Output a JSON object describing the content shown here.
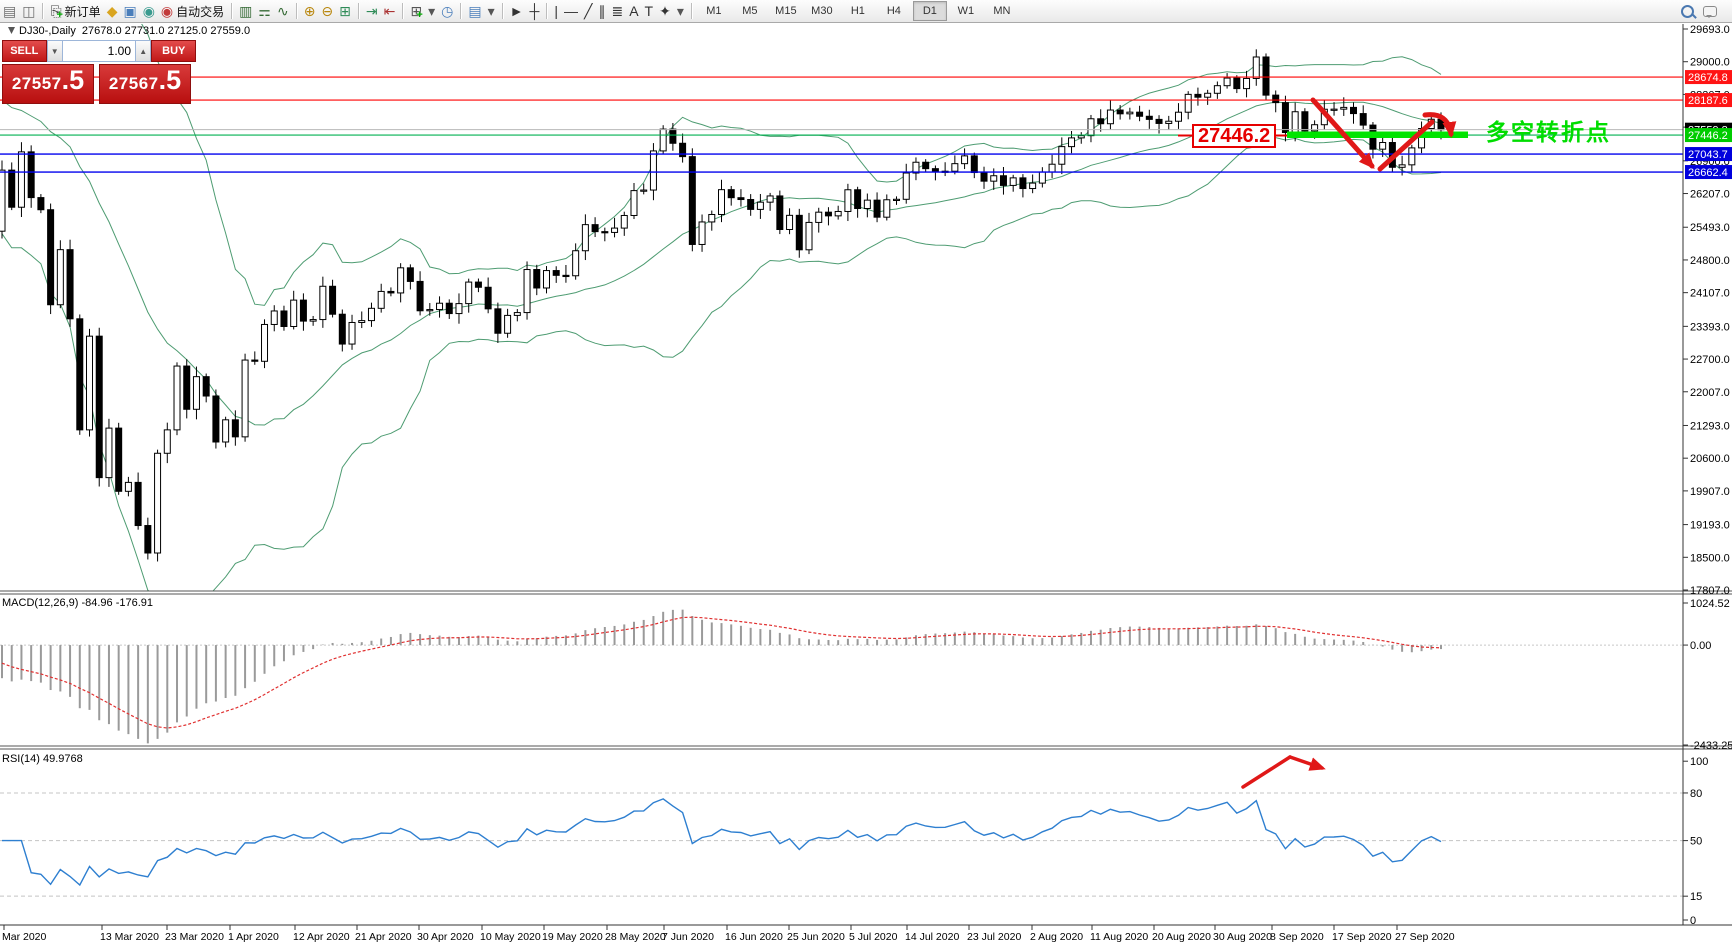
{
  "toolbar": {
    "left_icons": [
      {
        "name": "profiles-icon",
        "glyph": "▤",
        "color": "#6f6f6f"
      },
      {
        "name": "chart-preview-icon",
        "glyph": "◫",
        "color": "#6f6f6f"
      },
      {
        "name": "separator"
      },
      {
        "name": "new-order-icon",
        "glyph": "⎘",
        "color": "#444",
        "label": "新订单",
        "plus": true
      },
      {
        "name": "gold-icon",
        "glyph": "◆",
        "color": "#d9a520"
      },
      {
        "name": "terminal-icon",
        "glyph": "▣",
        "color": "#4a7ebb"
      },
      {
        "name": "signals-icon",
        "glyph": "◉",
        "color": "#3a9b8f"
      },
      {
        "name": "auto-trading-icon",
        "glyph": "◉",
        "color": "#c23b3b",
        "label": "自动交易"
      },
      {
        "name": "separator"
      },
      {
        "name": "bar-chart-icon",
        "glyph": "▥",
        "color": "#356a35"
      },
      {
        "name": "candlestick-chart-icon",
        "glyph": "⚎",
        "color": "#356a35"
      },
      {
        "name": "line-chart-icon",
        "glyph": "∿",
        "color": "#356a35"
      },
      {
        "name": "separator"
      },
      {
        "name": "zoom-in-icon",
        "glyph": "⊕",
        "color": "#b8860b"
      },
      {
        "name": "zoom-out-icon",
        "glyph": "⊖",
        "color": "#b8860b"
      },
      {
        "name": "tile-windows-icon",
        "glyph": "⊞",
        "color": "#2e8b57"
      },
      {
        "name": "separator"
      },
      {
        "name": "auto-scroll-icon",
        "glyph": "⇥",
        "color": "#2e8b57"
      },
      {
        "name": "chart-shift-icon",
        "glyph": "⇤",
        "color": "#a33"
      },
      {
        "name": "separator"
      },
      {
        "name": "add-indicator-icon",
        "glyph": "⊞",
        "color": "#555",
        "plus": true
      },
      {
        "name": "dropdown-caret-icon",
        "glyph": "▾",
        "color": "#555"
      },
      {
        "name": "clock-icon",
        "glyph": "◷",
        "color": "#4a7ebb"
      },
      {
        "name": "separator"
      },
      {
        "name": "indicator-list-icon",
        "glyph": "▤",
        "color": "#4a7ebb"
      },
      {
        "name": "dropdown-caret-icon-2",
        "glyph": "▾",
        "color": "#555"
      },
      {
        "name": "separator"
      },
      {
        "name": "cursor-icon",
        "glyph": "►",
        "color": "#333"
      },
      {
        "name": "crosshair-icon",
        "glyph": "┼",
        "color": "#333"
      },
      {
        "name": "separator"
      },
      {
        "name": "vertical-line-icon",
        "glyph": "|",
        "color": "#333"
      },
      {
        "name": "horizontal-line-icon",
        "glyph": "—",
        "color": "#333"
      },
      {
        "name": "trendline-icon",
        "glyph": "╱",
        "color": "#333"
      },
      {
        "name": "channel-icon",
        "glyph": "∥",
        "color": "#333"
      },
      {
        "name": "fibonacci-icon",
        "glyph": "≣",
        "color": "#333"
      },
      {
        "name": "text-icon",
        "glyph": "A",
        "color": "#333"
      },
      {
        "name": "text-label-icon",
        "glyph": "T",
        "color": "#333"
      },
      {
        "name": "arrows-icon",
        "glyph": "✦",
        "color": "#333"
      },
      {
        "name": "dropdown-caret-icon-3",
        "glyph": "▾",
        "color": "#555"
      }
    ],
    "timeframes": [
      "M1",
      "M5",
      "M15",
      "M30",
      "H1",
      "H4",
      "D1",
      "W1",
      "MN"
    ],
    "active_timeframe": "D1"
  },
  "chart": {
    "symbol_period": "DJ30-,Daily",
    "ohlc": "27678.0 27731.0 27125.0 27559.0"
  },
  "trade": {
    "sell_label": "SELL",
    "buy_label": "BUY",
    "volume": "1.00",
    "bid_main": "27557",
    "bid_frac": ".5",
    "ask_main": "27567",
    "ask_frac": ".5"
  },
  "annotations": {
    "level_flag": "27446.2",
    "turning_point": "多空转折点"
  },
  "indicators": {
    "macd_label": "MACD(12,26,9) -84.96 -176.91",
    "rsi_label": "RSI(14) 49.9768"
  },
  "axes": {
    "price_ticks": [
      "29693.0",
      "29000.0",
      "28307.0",
      "27614.0",
      "26900.0",
      "26207.0",
      "25493.0",
      "24800.0",
      "24107.0",
      "23393.0",
      "22700.0",
      "22007.0",
      "21293.0",
      "20600.0",
      "19907.0",
      "19193.0",
      "18500.0",
      "17807.0"
    ],
    "macd_ticks": [
      "1024.52",
      "0.00",
      "-2433.25"
    ],
    "rsi_ticks": [
      "100",
      "80",
      "50",
      "15",
      "0"
    ],
    "rsi_levels": [
      80,
      50,
      15
    ],
    "dates": [
      "Mar 2020",
      "13 Mar 2020",
      "23 Mar 2020",
      "1 Apr 2020",
      "12 Apr 2020",
      "21 Apr 2020",
      "30 Apr 2020",
      "10 May 2020",
      "19 May 2020",
      "28 May 2020",
      "7 Jun 2020",
      "16 Jun 2020",
      "25 Jun 2020",
      "5 Jul 2020",
      "14 Jul 2020",
      "23 Jul 2020",
      "2 Aug 2020",
      "11 Aug 2020",
      "20 Aug 2020",
      "30 Aug 2020",
      "8 Sep 2020",
      "17 Sep 2020",
      "27 Sep 2020"
    ]
  },
  "levels": [
    {
      "name": "resistance-1",
      "value": 28674.8,
      "color": "#ff0000",
      "width": 1.2,
      "badge": "#ff1414",
      "label": "28674.8"
    },
    {
      "name": "resistance-2",
      "value": 28187.6,
      "color": "#ff0000",
      "width": 1.2,
      "badge": "#ff1414",
      "label": "28187.6"
    },
    {
      "name": "current-price",
      "value": 27559.8,
      "color": "#b8b8b8",
      "width": 1,
      "badge": "#000000",
      "label": "27559.8"
    },
    {
      "name": "pivot-green",
      "value": 27446.2,
      "color": "#00b050",
      "width": 1.2,
      "badge": "#00cc00",
      "label": "27446.2"
    },
    {
      "name": "support-1",
      "value": 27043.7,
      "color": "#0000ee",
      "width": 1.4,
      "badge": "#0000dd",
      "label": "27043.7"
    },
    {
      "name": "support-2",
      "value": 26662.4,
      "color": "#0000ee",
      "width": 1.4,
      "badge": "#0000dd",
      "label": "26662.4"
    }
  ],
  "chart_data": {
    "type": "candlestick",
    "title": "DJ30- Daily",
    "ylim": [
      17807.0,
      29693.0
    ],
    "bollinger": {
      "period": 20,
      "deviation": 2,
      "color": "#4e9c72"
    },
    "macd": {
      "fast": 12,
      "slow": 26,
      "signal": 9,
      "range": [
        -2433.25,
        1024.52
      ]
    },
    "rsi": {
      "period": 14,
      "range": [
        0,
        100
      ]
    },
    "prehistory": [
      29551,
      29423,
      29398,
      29232,
      29348,
      29219,
      28992,
      28399,
      27960,
      27081,
      25766,
      25409
    ],
    "closes": [
      26703,
      25917,
      27090,
      26121,
      25864,
      23851,
      25018,
      23553,
      21200,
      23185,
      20188,
      21237,
      19898,
      20087,
      19173,
      18591,
      20704,
      21200,
      22552,
      21636,
      22327,
      21917,
      20943,
      21413,
      21052,
      22679,
      22653,
      23433,
      23719,
      23390,
      23949,
      23504,
      23537,
      24242,
      23650,
      23018,
      23475,
      23515,
      23775,
      24133,
      24101,
      24633,
      24345,
      23723,
      23749,
      23883,
      23664,
      23875,
      24331,
      24221,
      23764,
      23247,
      23625,
      23685,
      24597,
      24206,
      24575,
      24474,
      24465,
      24995,
      25548,
      25400,
      25383,
      25475,
      25742,
      26269,
      26281,
      27110,
      27572,
      27272,
      26989,
      25128,
      25605,
      25763,
      26289,
      26119,
      26080,
      25871,
      26024,
      26156,
      25445,
      25745,
      25015,
      25595,
      25812,
      25734,
      25827,
      26287,
      25890,
      26067,
      25706,
      26075,
      26085,
      26642,
      26870,
      26734,
      26671,
      26680,
      26840,
      27005,
      26652,
      26469,
      26584,
      26379,
      26539,
      26313,
      26428,
      26664,
      26828,
      27201,
      27386,
      27433,
      27791,
      27686,
      27976,
      27896,
      27931,
      27844,
      27778,
      27692,
      27739,
      27930,
      28308,
      28248,
      28331,
      28492,
      28653,
      28430,
      28645,
      29100,
      28292,
      28133,
      27500,
      27940,
      27534,
      27665,
      27993,
      27995,
      28032,
      27901,
      27657,
      27147,
      27288,
      26763,
      26815,
      27174,
      27584,
      27781,
      27559
    ]
  }
}
